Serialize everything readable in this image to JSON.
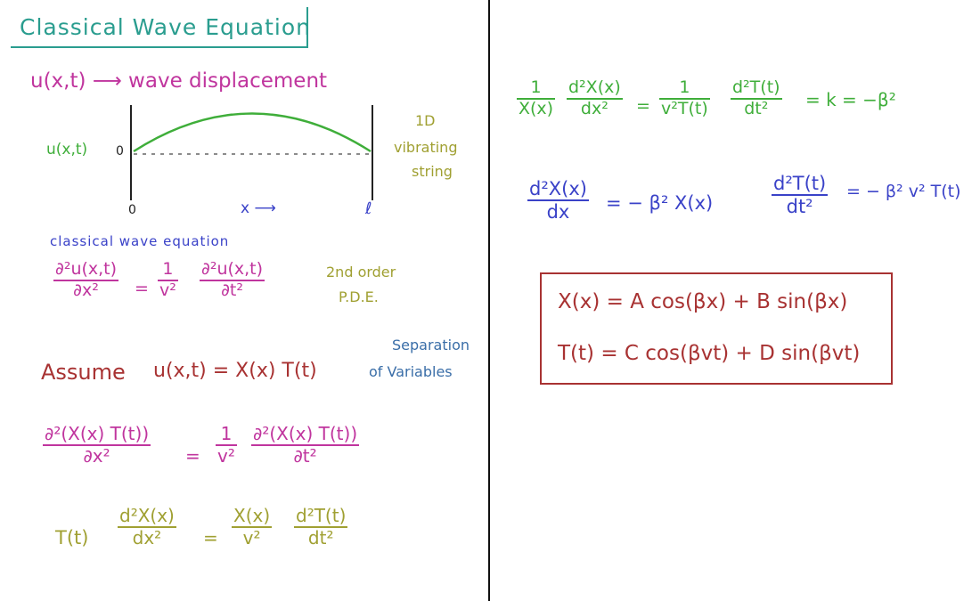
{
  "title": "Classical Wave Equation",
  "colors": {
    "teal": "#2a9d8f",
    "magenta": "#c0359e",
    "green": "#3fae3a",
    "olive": "#a0a032",
    "blue": "#3a42c8",
    "steel": "#3a6ea8",
    "maroon": "#a83232"
  },
  "left": {
    "definition": "u(x,t) ⟶ wave displacement",
    "diagram": {
      "u_label": "u(x,t)",
      "zero_label": "0",
      "x_origin": "0",
      "x_axis": "x ⟶",
      "x_end": "ℓ",
      "side_note": [
        "1D",
        "vibrating",
        "string"
      ]
    },
    "classical_heading": "classical wave equation",
    "wave_eq": {
      "lhs_num": "∂²u(x,t)",
      "lhs_den": "∂x²",
      "eq": "=",
      "coef_num": "1",
      "coef_den": "v²",
      "rhs_num": "∂²u(x,t)",
      "rhs_den": "∂t²"
    },
    "order_note": [
      "2nd order",
      "P.D.E."
    ],
    "assume": "Assume",
    "separation_expr": "u(x,t) = X(x) T(t)",
    "separation_note": [
      "Separation",
      "of Variables"
    ],
    "sub_eq": {
      "lhs_num": "∂²(X(x) T(t))",
      "lhs_den": "∂x²",
      "eq": "=",
      "coef_num": "1",
      "coef_den": "v²",
      "rhs_num": "∂²(X(x) T(t))",
      "rhs_den": "∂t²"
    },
    "ode_eq": {
      "lead": "T(t)",
      "a_num": "d²X(x)",
      "a_den": "dx²",
      "eq": "=",
      "b_num": "X(x)",
      "b_den": "v²",
      "c_num": "d²T(t)",
      "c_den": "dt²"
    }
  },
  "right": {
    "sep_eq": {
      "a_num": "1",
      "a_den": "X(x)",
      "b_num": "d²X(x)",
      "b_den": "dx²",
      "eq": "=",
      "c_num": "1",
      "c_den": "v²T(t)",
      "d_num": "d²T(t)",
      "d_den": "dt²",
      "tail": "= k = −β²"
    },
    "x_ode": {
      "num": "d²X(x)",
      "den": "dx",
      "rhs": "= − β² X(x)"
    },
    "t_ode": {
      "num": "d²T(t)",
      "den": "dt²",
      "rhs": "= − β² v² T(t)"
    },
    "solution": {
      "x_sol": "X(x) = A cos(βx) + B sin(βx)",
      "t_sol": "T(t) = C cos(βvt) + D sin(βvt)"
    }
  }
}
